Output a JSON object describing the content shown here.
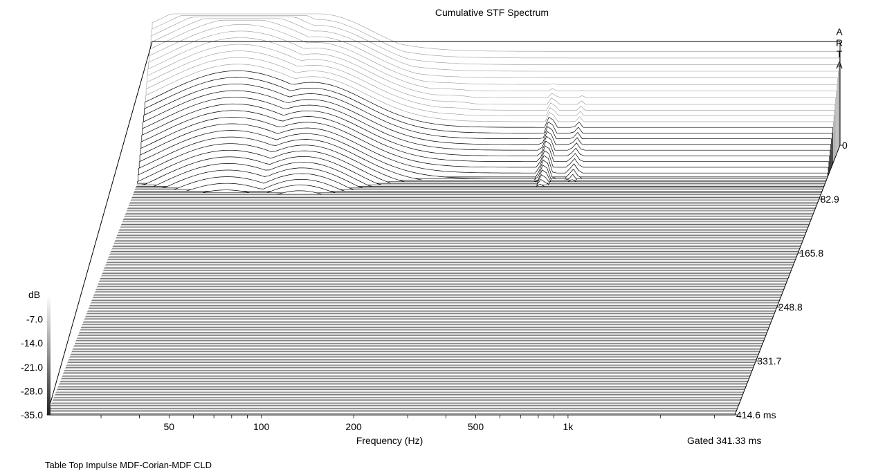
{
  "chart_data": {
    "type": "waterfall",
    "title": "Cumulative STF Spectrum",
    "brand_letters": [
      "A",
      "R",
      "T",
      "A"
    ],
    "xlabel": "Frequency (Hz)",
    "x_scale": "log",
    "x_ticks": [
      50,
      100,
      200,
      500,
      1000
    ],
    "x_tick_labels": [
      "50",
      "100",
      "200",
      "500",
      "1k"
    ],
    "x_range": [
      20,
      3500
    ],
    "z_unit_label": "dB",
    "z_ticks": [
      -7.0,
      -14.0,
      -21.0,
      -28.0,
      -35.0
    ],
    "z_tick_labels": [
      "-7.0",
      "-14.0",
      "-21.0",
      "-28.0",
      "-35.0"
    ],
    "z_range": [
      -35,
      0
    ],
    "z_top_label": "0",
    "time_ticks": [
      0,
      82.9,
      165.8,
      248.8,
      331.7,
      414.6
    ],
    "time_tick_labels": [
      "0",
      "82.9",
      "165.8",
      "248.8",
      "331.7",
      "414.6 ms"
    ],
    "time_range": [
      0,
      414.6
    ],
    "gate_label": "Gated 341.33 ms",
    "slice_count": 170,
    "decay_shape": {
      "low_resonance_peak_hz": 40,
      "mid_resonance_peak_hz": 70,
      "bass_rolloff_hz": 300,
      "minor_peaks_hz": [
        420,
        520,
        780,
        950,
        2300
      ]
    },
    "footer_note": "Table Top Impulse MDF-Corian-MDF CLD",
    "colors": {
      "line": "#000000",
      "faint_line": "#9a9a9a",
      "background": "#ffffff"
    }
  }
}
